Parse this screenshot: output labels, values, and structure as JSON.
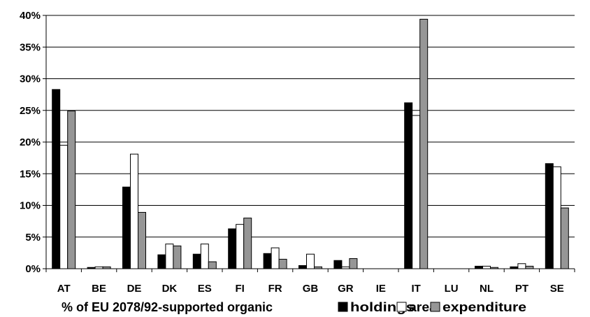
{
  "chart_data": {
    "type": "bar",
    "title": "",
    "xlabel": "% of EU 2078/92-supported organic",
    "ylabel": "",
    "categories": [
      "AT",
      "BE",
      "DE",
      "DK",
      "ES",
      "FI",
      "FR",
      "GB",
      "GR",
      "IE",
      "IT",
      "LU",
      "NL",
      "PT",
      "SE"
    ],
    "series": [
      {
        "name": "holdings",
        "color": "#000000",
        "values": [
          28.3,
          0.2,
          12.9,
          2.2,
          2.3,
          6.3,
          2.4,
          0.5,
          1.3,
          0.0,
          26.2,
          0.0,
          0.4,
          0.3,
          16.6
        ]
      },
      {
        "name": "area",
        "color": "#ffffff",
        "values": [
          19.5,
          0.3,
          18.1,
          3.9,
          3.9,
          7.0,
          3.3,
          2.3,
          0.3,
          0.0,
          24.2,
          0.0,
          0.4,
          0.8,
          16.1
        ]
      },
      {
        "name": "expenditure",
        "color": "#969696",
        "values": [
          24.9,
          0.3,
          8.9,
          3.6,
          1.1,
          8.0,
          1.5,
          0.3,
          1.6,
          0.0,
          39.4,
          0.0,
          0.2,
          0.4,
          9.6
        ]
      }
    ],
    "yticks": [
      "0%",
      "5%",
      "10%",
      "15%",
      "20%",
      "25%",
      "30%",
      "35%",
      "40%"
    ],
    "ylim": [
      0,
      40
    ],
    "grid": true,
    "legend": "bottom"
  }
}
